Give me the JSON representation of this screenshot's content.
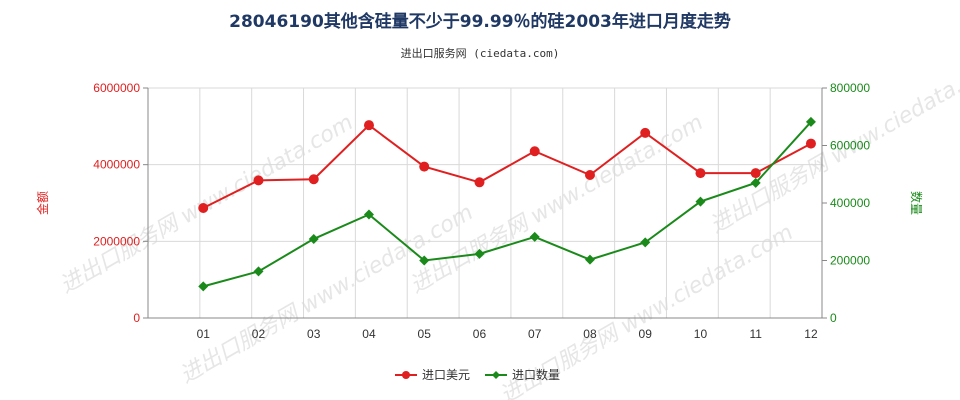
{
  "watermark": "进出口服务网 www.ciedata.com",
  "chart_data": {
    "type": "line",
    "title": "28046190其他含硅量不少于99.99％的硅2003年进口月度走势",
    "subtitle": "进出口服务网 (ciedata.com)",
    "categories": [
      "01",
      "02",
      "03",
      "04",
      "05",
      "06",
      "07",
      "08",
      "09",
      "10",
      "11",
      "12"
    ],
    "y_left": {
      "label": "金额",
      "ylim": [
        0,
        6000000
      ],
      "ticks": [
        0,
        2000000,
        4000000,
        6000000
      ],
      "tick_labels": [
        "0",
        "2000000",
        "4000000",
        "6000000"
      ],
      "color": "#e02020"
    },
    "y_right": {
      "label": "数量",
      "ylim": [
        0,
        800000
      ],
      "ticks": [
        0,
        200000,
        400000,
        600000,
        800000
      ],
      "tick_labels": [
        "0",
        "200000",
        "400000",
        "600000",
        "800000"
      ],
      "color": "#1a8a1a"
    },
    "grid": true,
    "legend_position": "bottom",
    "series": [
      {
        "name": "进口美元",
        "axis": "left",
        "color": "#e02020",
        "values": [
          2870000,
          3590000,
          3620000,
          5030000,
          3950000,
          3540000,
          4350000,
          3730000,
          4830000,
          3780000,
          3780000,
          4550000
        ]
      },
      {
        "name": "进口数量",
        "axis": "right",
        "color": "#1a8a1a",
        "values": [
          110000,
          162000,
          275000,
          360000,
          200000,
          223000,
          282000,
          203000,
          263000,
          405000,
          470000,
          682000
        ]
      }
    ]
  }
}
